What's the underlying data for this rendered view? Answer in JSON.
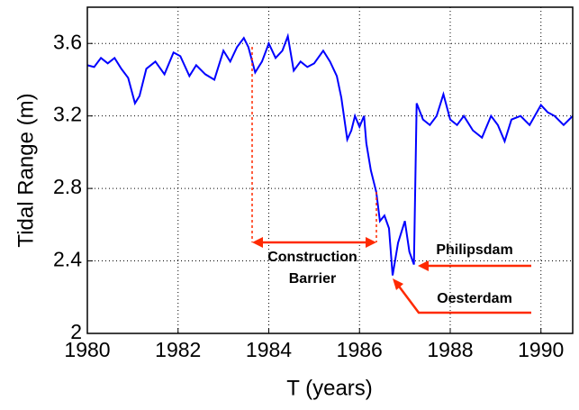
{
  "chart_data": {
    "type": "line",
    "x_label": "T (years)",
    "y_label": "Tidal Range (m)",
    "x": [
      1980.0,
      1980.15,
      1980.3,
      1980.45,
      1980.6,
      1980.75,
      1980.9,
      1981.05,
      1981.15,
      1981.3,
      1981.5,
      1981.7,
      1981.9,
      1982.05,
      1982.25,
      1982.4,
      1982.6,
      1982.8,
      1983.0,
      1983.15,
      1983.3,
      1983.45,
      1983.55,
      1983.7,
      1983.85,
      1984.0,
      1984.15,
      1984.3,
      1984.42,
      1984.55,
      1984.7,
      1984.85,
      1985.0,
      1985.2,
      1985.35,
      1985.5,
      1985.6,
      1985.73,
      1985.82,
      1985.9,
      1986.0,
      1986.1,
      1986.15,
      1986.25,
      1986.37,
      1986.45,
      1986.55,
      1986.65,
      1986.73,
      1986.85,
      1987.0,
      1987.1,
      1987.2,
      1987.26,
      1987.4,
      1987.55,
      1987.7,
      1987.85,
      1988.0,
      1988.15,
      1988.3,
      1988.5,
      1988.7,
      1988.9,
      1989.05,
      1989.2,
      1989.35,
      1989.55,
      1989.75,
      1990.0,
      1990.15,
      1990.3,
      1990.5,
      1990.7
    ],
    "values": [
      3.48,
      3.47,
      3.52,
      3.49,
      3.52,
      3.46,
      3.41,
      3.27,
      3.31,
      3.46,
      3.5,
      3.43,
      3.55,
      3.53,
      3.42,
      3.48,
      3.43,
      3.4,
      3.56,
      3.5,
      3.58,
      3.63,
      3.58,
      3.44,
      3.5,
      3.6,
      3.52,
      3.56,
      3.64,
      3.45,
      3.5,
      3.47,
      3.49,
      3.56,
      3.5,
      3.42,
      3.3,
      3.07,
      3.12,
      3.2,
      3.14,
      3.2,
      3.05,
      2.9,
      2.78,
      2.62,
      2.65,
      2.58,
      2.32,
      2.5,
      2.62,
      2.45,
      2.38,
      3.27,
      3.18,
      3.15,
      3.2,
      3.32,
      3.18,
      3.15,
      3.2,
      3.12,
      3.08,
      3.2,
      3.15,
      3.06,
      3.18,
      3.2,
      3.15,
      3.26,
      3.22,
      3.2,
      3.15,
      3.2
    ],
    "color": "#0000ff",
    "xlim": [
      1980,
      1990.7
    ],
    "xticks": [
      1980,
      1982,
      1984,
      1986,
      1988,
      1990
    ],
    "ylim": [
      2,
      3.8
    ],
    "yticks": [
      2,
      2.4,
      2.8,
      3.2,
      3.6
    ],
    "grid": true,
    "annotations": [
      "Construction",
      "Barrier",
      "Philipsdam",
      "Oesterdam"
    ]
  }
}
